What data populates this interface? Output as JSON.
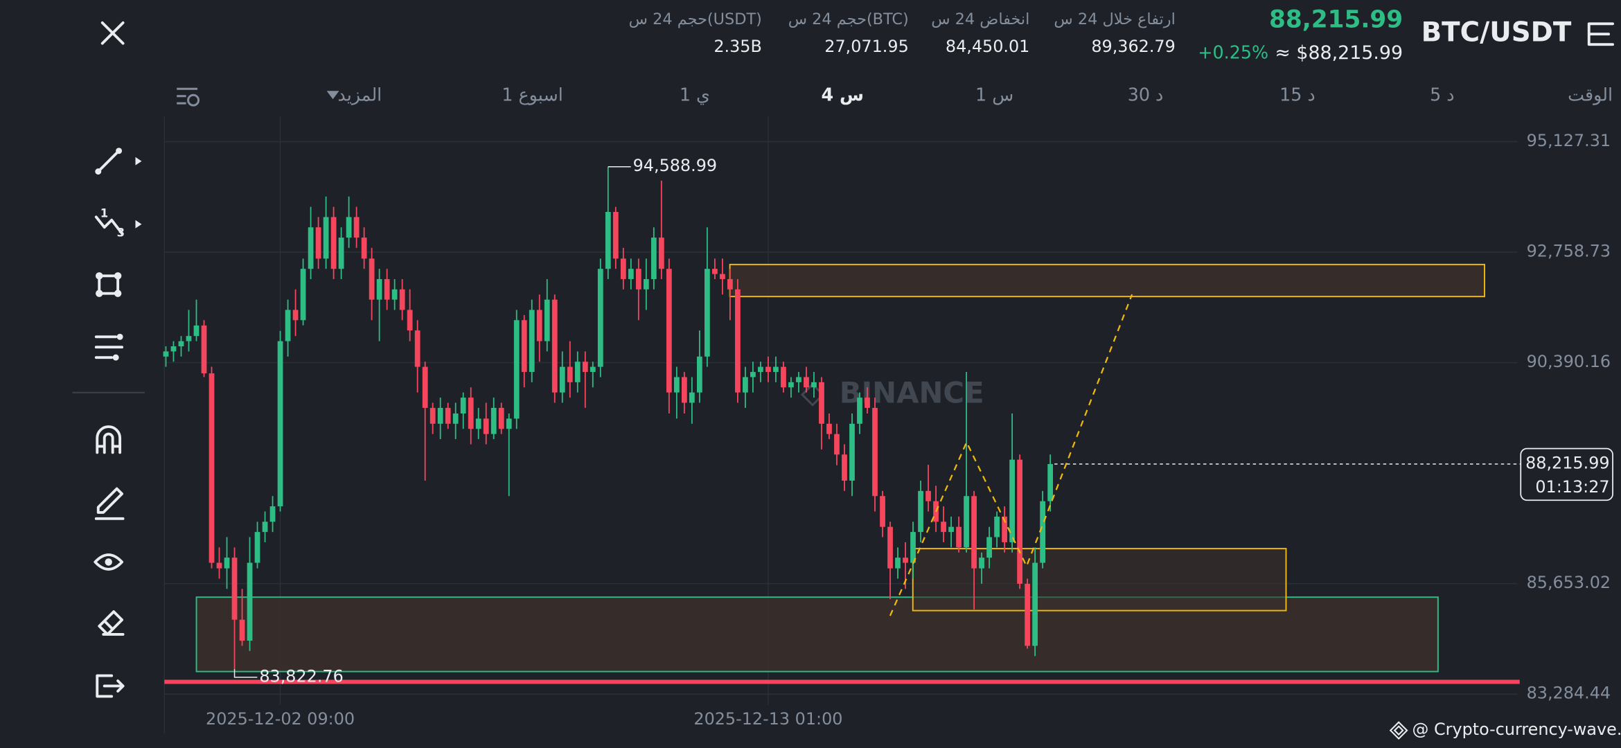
{
  "header": {
    "pair": "BTC/USDT",
    "price": "88,215.99",
    "price_usd": "≈ $88,215.99",
    "change": "+0.25%",
    "stats": [
      {
        "label": "ارتفاع خلال 24 س",
        "value": "89,362.79"
      },
      {
        "label": "انخفاض 24 س",
        "value": "84,450.01"
      },
      {
        "label": "حجم 24 س(BTC)",
        "value": "27,071.95"
      },
      {
        "label": "حجم 24 س(USDT)",
        "value": "2.35B"
      }
    ]
  },
  "timeframes": [
    "الوقت",
    "5 د",
    "15 د",
    "30 د",
    "1 س",
    "4 س",
    "1 ي",
    "1 اسبوع",
    "المزيد"
  ],
  "chart_data": {
    "type": "candlestick",
    "colors": {
      "up": "#2ebd85",
      "down": "#f6465d"
    },
    "ylim": [
      83060,
      95660
    ],
    "yticks": [
      {
        "value": 95127.31,
        "label": "95,127.31"
      },
      {
        "value": 92758.73,
        "label": "92,758.73"
      },
      {
        "value": 90390.16,
        "label": "90,390.16"
      },
      {
        "value": 85653.02,
        "label": "85,653.02"
      },
      {
        "value": 83284.44,
        "label": "83,284.44"
      }
    ],
    "xlim": [
      -0.2,
      177.3
    ],
    "xticks": [
      {
        "value": 15,
        "label": "2025-12-02 09:00"
      },
      {
        "value": 79,
        "label": "2025-12-13 01:00"
      }
    ],
    "grid": true,
    "candles": [
      [
        90520,
        90740,
        90300,
        90630
      ],
      [
        90630,
        90850,
        90410,
        90740
      ],
      [
        90740,
        90960,
        90520,
        90850
      ],
      [
        90850,
        91520,
        90630,
        90960
      ],
      [
        90960,
        91740,
        90850,
        91186
      ],
      [
        91186,
        91300,
        90080,
        90160
      ],
      [
        90160,
        90300,
        85980,
        86100
      ],
      [
        86100,
        86430,
        85760,
        85980
      ],
      [
        85980,
        86650,
        85540,
        86210
      ],
      [
        86210,
        86430,
        83822.76,
        84880
      ],
      [
        84880,
        85540,
        84320,
        84430
      ],
      [
        84430,
        86650,
        84210,
        86100
      ],
      [
        86100,
        86980,
        85980,
        86760
      ],
      [
        86760,
        87200,
        86540,
        86980
      ],
      [
        86980,
        87530,
        86760,
        87310
      ],
      [
        87310,
        91070,
        87200,
        90850
      ],
      [
        90850,
        91740,
        90520,
        91520
      ],
      [
        91520,
        91960,
        90960,
        91300
      ],
      [
        91300,
        92620,
        91190,
        92400
      ],
      [
        92400,
        93730,
        92180,
        93290
      ],
      [
        93290,
        93510,
        92400,
        92620
      ],
      [
        92620,
        93950,
        92400,
        93510
      ],
      [
        93510,
        93730,
        92180,
        92400
      ],
      [
        92400,
        93290,
        92180,
        93070
      ],
      [
        93070,
        93950,
        92850,
        93510
      ],
      [
        93510,
        93730,
        92850,
        93070
      ],
      [
        93070,
        93290,
        92400,
        92620
      ],
      [
        92620,
        92850,
        91300,
        91740
      ],
      [
        91740,
        92400,
        90850,
        92180
      ],
      [
        92180,
        92400,
        91520,
        91740
      ],
      [
        91740,
        92180,
        91520,
        91960
      ],
      [
        91960,
        92180,
        91300,
        91520
      ],
      [
        91520,
        91960,
        90850,
        91080
      ],
      [
        91080,
        91300,
        89750,
        90300
      ],
      [
        90300,
        90410,
        87860,
        89420
      ],
      [
        89420,
        89530,
        88860,
        89080
      ],
      [
        89080,
        89640,
        88750,
        89420
      ],
      [
        89420,
        89530,
        88970,
        89080
      ],
      [
        89080,
        89530,
        88750,
        89300
      ],
      [
        89300,
        89750,
        88970,
        89640
      ],
      [
        89640,
        89860,
        88640,
        88970
      ],
      [
        88970,
        89420,
        88750,
        89190
      ],
      [
        89190,
        89530,
        88640,
        88860
      ],
      [
        88860,
        89640,
        88750,
        89420
      ],
      [
        89420,
        89530,
        88860,
        88970
      ],
      [
        88970,
        89300,
        87530,
        89190
      ],
      [
        89190,
        91520,
        88970,
        91300
      ],
      [
        91300,
        91410,
        89860,
        90190
      ],
      [
        90190,
        91740,
        89970,
        91520
      ],
      [
        91520,
        91850,
        90410,
        90850
      ],
      [
        90850,
        92180,
        90630,
        91740
      ],
      [
        91740,
        91850,
        89530,
        89750
      ],
      [
        89750,
        90630,
        89530,
        90300
      ],
      [
        90300,
        90850,
        89640,
        89970
      ],
      [
        89970,
        90630,
        89750,
        90410
      ],
      [
        90410,
        90630,
        89420,
        90190
      ],
      [
        90190,
        90410,
        89860,
        90300
      ],
      [
        90300,
        92620,
        90080,
        92400
      ],
      [
        92400,
        94588.99,
        92180,
        93620
      ],
      [
        93620,
        93730,
        92400,
        92620
      ],
      [
        92620,
        92850,
        91960,
        92180
      ],
      [
        92180,
        92620,
        91960,
        92400
      ],
      [
        92400,
        92620,
        91300,
        91960
      ],
      [
        91960,
        92620,
        91520,
        92180
      ],
      [
        92180,
        93290,
        91960,
        93070
      ],
      [
        93070,
        94290,
        92180,
        92400
      ],
      [
        92400,
        92620,
        89300,
        89750
      ],
      [
        89750,
        90300,
        89190,
        90080
      ],
      [
        90080,
        90190,
        89300,
        89530
      ],
      [
        89530,
        90080,
        89080,
        89750
      ],
      [
        89750,
        91080,
        89530,
        90520
      ],
      [
        90520,
        93290,
        90300,
        92400
      ],
      [
        92400,
        92620,
        92180,
        92290
      ],
      [
        92290,
        92620,
        91850,
        92180
      ],
      [
        92180,
        92400,
        91300,
        91960
      ],
      [
        91960,
        92180,
        89530,
        89750
      ],
      [
        89750,
        90300,
        89420,
        90080
      ],
      [
        90080,
        90410,
        89750,
        90190
      ],
      [
        90190,
        90410,
        89970,
        90300
      ],
      [
        90300,
        90520,
        89970,
        90190
      ],
      [
        90190,
        90520,
        89970,
        90300
      ],
      [
        90300,
        90410,
        89750,
        89860
      ],
      [
        89860,
        90080,
        89640,
        89970
      ],
      [
        89970,
        90190,
        89750,
        90080
      ],
      [
        90080,
        90300,
        89750,
        89860
      ],
      [
        89860,
        90190,
        89640,
        89970
      ],
      [
        89970,
        90080,
        88530,
        89080
      ],
      [
        89080,
        89300,
        88750,
        88860
      ],
      [
        88860,
        89080,
        88190,
        88420
      ],
      [
        88420,
        88640,
        87640,
        87860
      ],
      [
        87860,
        89300,
        87530,
        89080
      ],
      [
        89080,
        89750,
        88860,
        89640
      ],
      [
        89640,
        89860,
        89300,
        89420
      ],
      [
        89420,
        89640,
        87200,
        87530
      ],
      [
        87530,
        87640,
        86650,
        86870
      ],
      [
        86870,
        86980,
        85320,
        85980
      ],
      [
        85980,
        86430,
        85760,
        86210
      ],
      [
        86210,
        86540,
        85540,
        86100
      ],
      [
        86100,
        86980,
        85760,
        86760
      ],
      [
        86760,
        87860,
        86540,
        87640
      ],
      [
        87640,
        88200,
        87200,
        87420
      ],
      [
        87420,
        87750,
        86760,
        86980
      ],
      [
        86980,
        87310,
        86540,
        86760
      ],
      [
        86760,
        87090,
        86430,
        86870
      ],
      [
        86870,
        87090,
        86320,
        86430
      ],
      [
        86430,
        90190,
        86320,
        87530
      ],
      [
        87530,
        87640,
        85100,
        85980
      ],
      [
        85980,
        86320,
        85650,
        86210
      ],
      [
        86210,
        86870,
        85980,
        86650
      ],
      [
        86650,
        87200,
        86430,
        87090
      ],
      [
        87090,
        87310,
        86320,
        86540
      ],
      [
        86540,
        89300,
        86320,
        88310
      ],
      [
        88310,
        88420,
        85540,
        85650
      ],
      [
        85650,
        85760,
        84260,
        84320
      ],
      [
        84320,
        86430,
        84100,
        86100
      ],
      [
        86100,
        87640,
        85980,
        87420
      ],
      [
        87420,
        88420,
        87200,
        88215.99
      ]
    ],
    "high_label": "94,588.99",
    "low_label": "83,822.76",
    "last_price_label": "88,215.99",
    "countdown": "01:13:27",
    "watermark": "BINANCE"
  },
  "footer": "@ Crypto-currency-wave..."
}
